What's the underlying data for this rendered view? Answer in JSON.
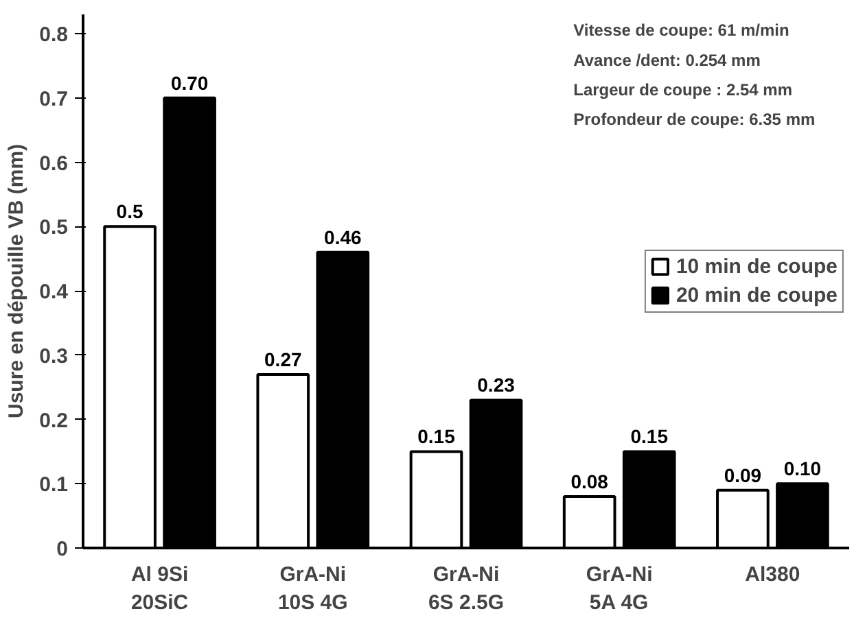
{
  "chart_data": {
    "type": "bar",
    "ylabel": "Usure en dépouille VB (mm)",
    "categories": [
      "Al 9Si\n20SiC",
      "GrA-Ni\n10S 4G",
      "GrA-Ni\n6S 2.5G",
      "GrA-Ni\n5A 4G",
      "Al380"
    ],
    "series": [
      {
        "name": "10 min de coupe",
        "color": "#ffffff",
        "values": [
          0.5,
          0.27,
          0.15,
          0.08,
          0.09
        ],
        "value_labels": [
          "0.5",
          "0.27",
          "0.15",
          "0.08",
          "0.09"
        ]
      },
      {
        "name": "20 min de coupe",
        "color": "#000000",
        "values": [
          0.7,
          0.46,
          0.23,
          0.15,
          0.1
        ],
        "value_labels": [
          "0.70",
          "0.46",
          "0.23",
          "0.15",
          "0.10"
        ]
      }
    ],
    "ylim": [
      0,
      0.83
    ],
    "yticks": [
      0,
      0.1,
      0.2,
      0.3,
      0.4,
      0.5,
      0.6,
      0.7,
      0.8
    ],
    "grid": false,
    "legend": "right",
    "annotations": [
      "Vitesse de coupe: 61 m/min",
      "Avance /dent: 0.254 mm",
      "Largeur de coupe : 2.54 mm",
      "Profondeur de coupe: 6.35 mm"
    ]
  }
}
